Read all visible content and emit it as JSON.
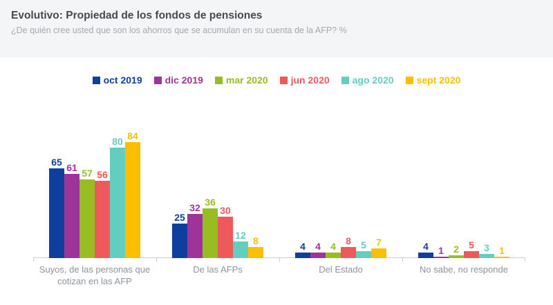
{
  "header": {
    "title": "Evolutivo: Propiedad de los fondos de pensiones",
    "subtitle": "¿De quién cree usted que son los ahorros que se acumulan en su cuenta de la AFP? %"
  },
  "colors": {
    "header_bg": "#f4f5f6",
    "title_text": "#454a51",
    "subtitle_text": "#a2a8af",
    "category_label_text": "#8d939b",
    "axis": "#c9cdd2"
  },
  "chart_data": {
    "type": "bar",
    "title": "Evolutivo: Propiedad de los fondos de pensiones",
    "subtitle": "¿De quién cree usted que son los ahorros que se acumulan en su cuenta de la AFP? %",
    "unit": "%",
    "categories": [
      "Suyos, de las personas que cotizan en las AFP",
      "De las AFPs",
      "Del Estado",
      "No sabe, no responde"
    ],
    "series": [
      {
        "name": "oct 2019",
        "color": "#0e3f9e",
        "values": [
          65,
          25,
          4,
          4
        ]
      },
      {
        "name": "dic 2019",
        "color": "#9e3399",
        "values": [
          61,
          32,
          4,
          1
        ]
      },
      {
        "name": "mar 2020",
        "color": "#97bd22",
        "values": [
          57,
          36,
          4,
          2
        ]
      },
      {
        "name": "jun 2020",
        "color": "#ee5a5b",
        "values": [
          56,
          30,
          8,
          5
        ]
      },
      {
        "name": "ago 2020",
        "color": "#63cdc0",
        "values": [
          80,
          12,
          5,
          3
        ]
      },
      {
        "name": "sept 2020",
        "color": "#fcbf00",
        "values": [
          84,
          8,
          7,
          1
        ]
      }
    ],
    "ylim": [
      0,
      100
    ],
    "grid": false,
    "legend_position": "top-center",
    "value_labels": true
  }
}
